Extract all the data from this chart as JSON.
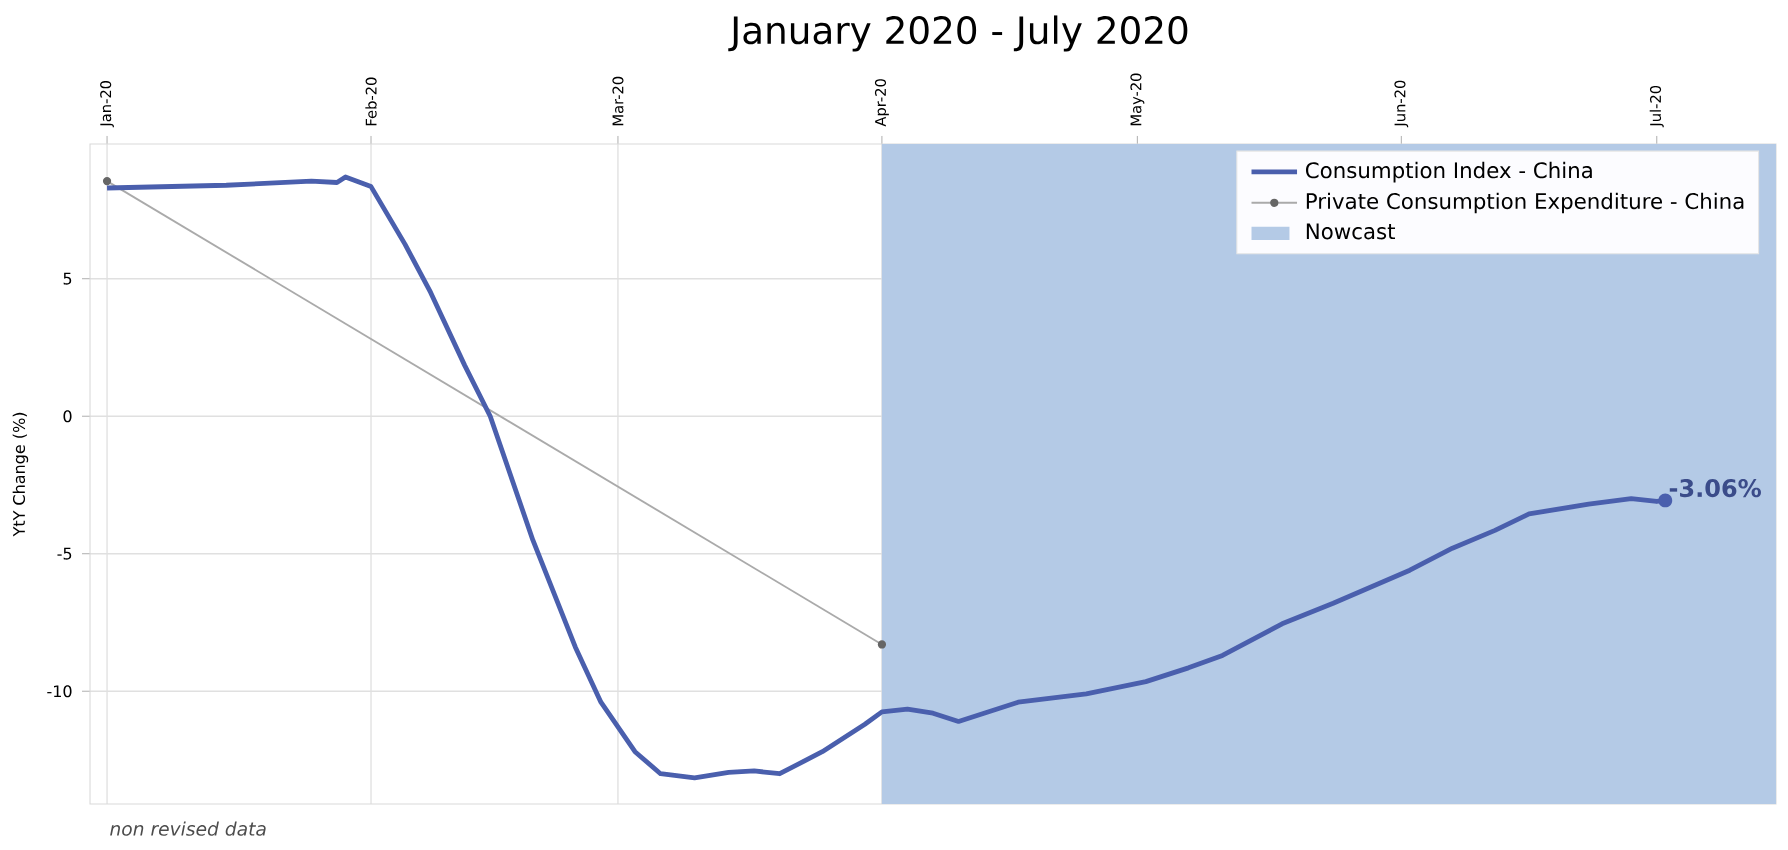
{
  "chart_data": {
    "type": "line",
    "title": "January 2020 - July 2020",
    "ylabel": "YtY Change (%)",
    "annotations": [
      {
        "text": "-3.06%",
        "x": "2020-07-02",
        "y": -3.06
      },
      "non revised data"
    ],
    "series": [
      {
        "name": "Consumption Index - China",
        "color": "#4a5fad",
        "marker": "none",
        "line_style": "solid",
        "x": [
          "2020-01-01",
          "2020-01-15",
          "2020-01-25",
          "2020-01-28",
          "2020-01-29",
          "2020-02-01",
          "2020-02-05",
          "2020-02-08",
          "2020-02-12",
          "2020-02-15",
          "2020-02-20",
          "2020-02-25",
          "2020-02-28",
          "2020-03-03",
          "2020-03-06",
          "2020-03-10",
          "2020-03-14",
          "2020-03-17",
          "2020-03-20",
          "2020-03-25",
          "2020-03-30",
          "2020-04-01",
          "2020-04-04",
          "2020-04-07",
          "2020-04-10",
          "2020-04-17",
          "2020-04-25",
          "2020-05-02",
          "2020-05-07",
          "2020-05-11",
          "2020-05-18",
          "2020-05-24",
          "2020-06-02",
          "2020-06-07",
          "2020-06-12",
          "2020-06-16",
          "2020-06-23",
          "2020-06-28",
          "2020-07-01",
          "2020-07-02"
        ],
        "values": [
          8.3,
          8.4,
          8.55,
          8.5,
          8.7,
          8.35,
          6.25,
          4.5,
          1.85,
          0,
          -4.5,
          -8.4,
          -10.4,
          -12.2,
          -13.0,
          -13.15,
          -12.95,
          -12.9,
          -13.0,
          -12.2,
          -11.2,
          -10.75,
          -10.65,
          -10.8,
          -11.1,
          -10.4,
          -10.1,
          -9.65,
          -9.15,
          -8.7,
          -7.55,
          -6.8,
          -5.6,
          -4.8,
          -4.15,
          -3.55,
          -3.2,
          -3.0,
          -3.1,
          -3.06
        ]
      },
      {
        "name": "Private Consumption Expenditure - China",
        "color": "#aaaaaa",
        "marker": "circle",
        "line_style": "solid",
        "x": [
          "2020-01-01",
          "2020-04-01"
        ],
        "values": [
          8.55,
          -8.3
        ]
      }
    ],
    "bands": [
      {
        "axis": "x",
        "from": "2020-04-01",
        "to": "2020-07-15",
        "label": "Nowcast",
        "color": "#b4cae6"
      }
    ],
    "xlim": [
      "2019-12-30",
      "2020-07-15"
    ],
    "xticks": [
      {
        "value": "2020-01-01",
        "label": "Jan-20"
      },
      {
        "value": "2020-02-01",
        "label": "Feb-20"
      },
      {
        "value": "2020-03-01",
        "label": "Mar-20"
      },
      {
        "value": "2020-04-01",
        "label": "Apr-20"
      },
      {
        "value": "2020-05-01",
        "label": "May-20"
      },
      {
        "value": "2020-06-01",
        "label": "Jun-20"
      },
      {
        "value": "2020-07-01",
        "label": "Jul-20"
      }
    ],
    "ylim": [
      -14.1,
      9.9
    ],
    "yticks": [
      -10,
      -5,
      0,
      5
    ],
    "grid": true,
    "legend": "top right"
  }
}
